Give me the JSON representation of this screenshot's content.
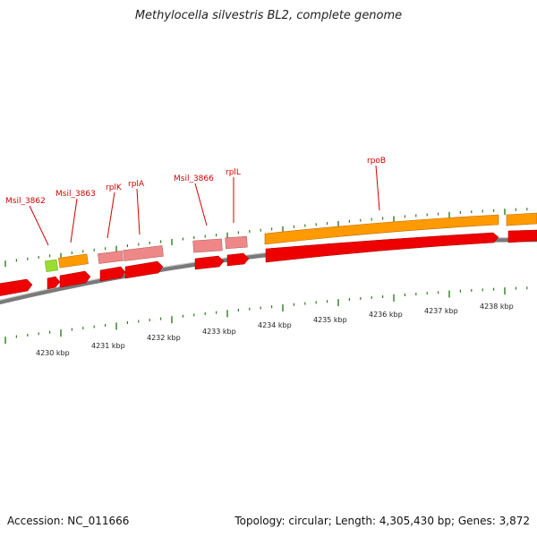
{
  "title": "Methylocella silvestris BL2, complete genome",
  "footer": {
    "accession": "Accession: NC_011666",
    "summary": "Topology: circular; Length: 4,305,430 bp; Genes: 3,872"
  },
  "colors": {
    "label": "#d40000",
    "backbone": "#7a7a7a",
    "tick": "#2e7d1e",
    "cds": "#ee0000",
    "gene_orange": "#ff9a00",
    "gene_pink": "#ee8888",
    "gene_green": "#99dd33"
  },
  "gene_labels": [
    "Msil_3862",
    "Msil_3863",
    "rplK",
    "rplA",
    "Msil_3866",
    "rplL",
    "rpoB"
  ],
  "kbp_labels": [
    "4230 kbp",
    "4231 kbp",
    "4232 kbp",
    "4233 kbp",
    "4234 kbp",
    "4235 kbp",
    "4236 kbp",
    "4237 kbp",
    "4238 kbp"
  ]
}
